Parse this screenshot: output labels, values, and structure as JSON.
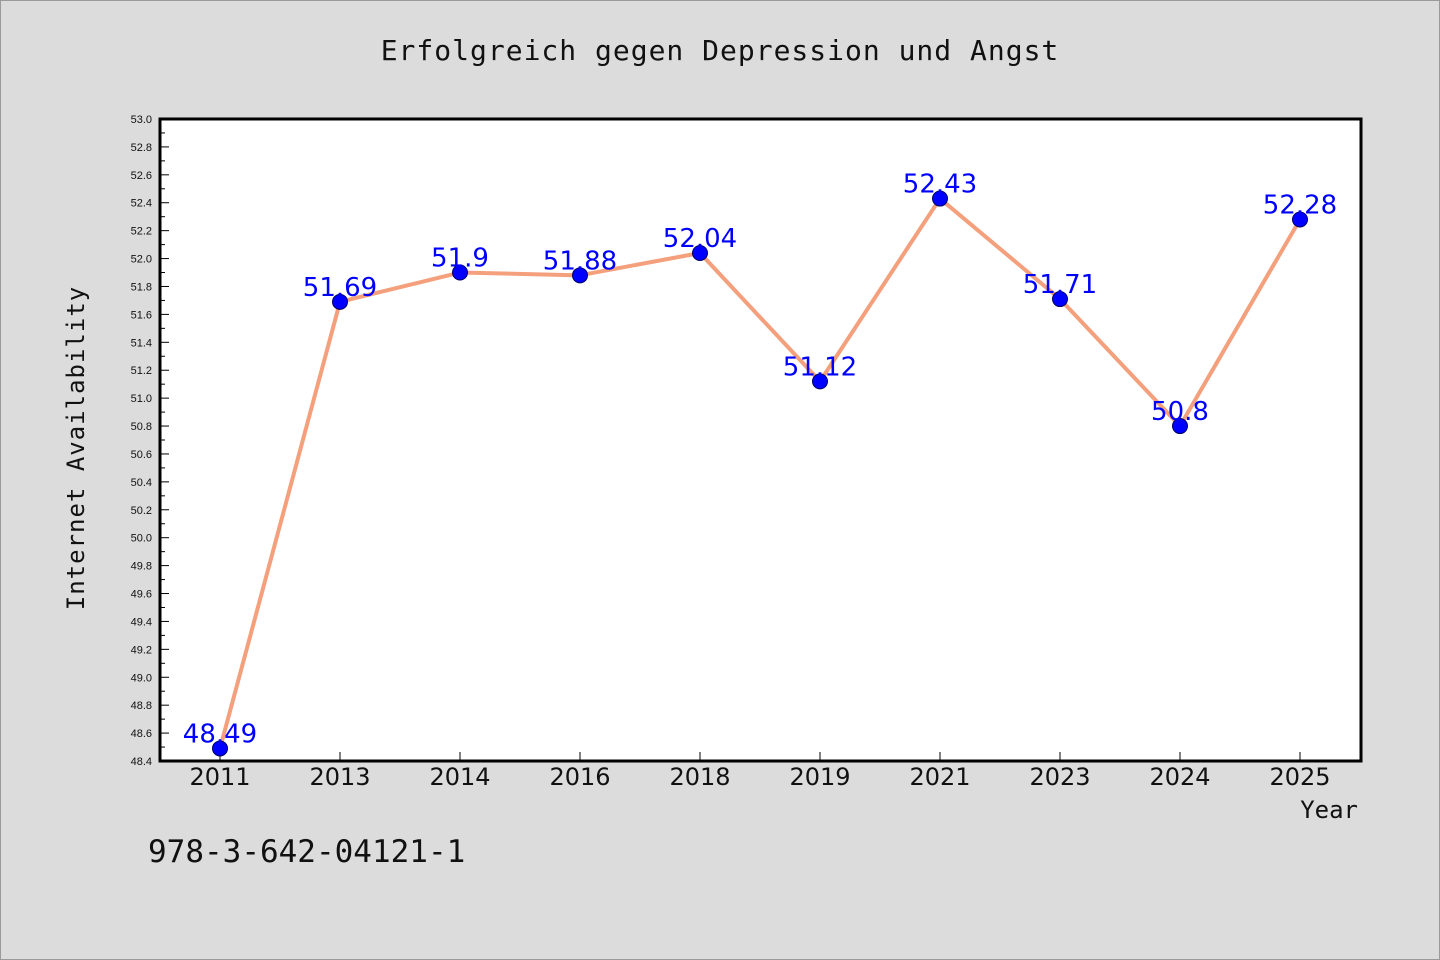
{
  "chart_data": {
    "type": "line",
    "title": "Erfolgreich gegen Depression und Angst",
    "xlabel": "Year",
    "ylabel": "Internet Availability",
    "categories": [
      "2011",
      "2013",
      "2014",
      "2016",
      "2018",
      "2019",
      "2021",
      "2023",
      "2024",
      "2025"
    ],
    "series": [
      {
        "values": [
          48.49,
          51.69,
          51.9,
          51.88,
          52.04,
          51.12,
          52.43,
          51.71,
          50.8,
          52.28
        ],
        "data_labels": [
          "48.49",
          "51.69",
          "51.9",
          "51.88",
          "52.04",
          "51.12",
          "52.43",
          "51.71",
          "50.8",
          "52.28"
        ]
      }
    ],
    "ylim": [
      48.4,
      53.0
    ],
    "yticks": [
      "48.4",
      "48.6",
      "48.8",
      "49.0",
      "49.2",
      "49.4",
      "49.6",
      "49.8",
      "50.0",
      "50.2",
      "50.4",
      "50.6",
      "50.8",
      "51.0",
      "51.2",
      "51.4",
      "51.6",
      "51.8",
      "52.0",
      "52.2",
      "52.4",
      "52.6",
      "52.8",
      "53.0"
    ],
    "grid": false,
    "legend": "none",
    "colors": {
      "line": "#f4a07c",
      "marker": "#0000ff",
      "data_label": "#0000ff",
      "plot_background": "#ffffff",
      "page_background": "#dcdcdc"
    }
  },
  "footnote": "978-3-642-04121-1"
}
